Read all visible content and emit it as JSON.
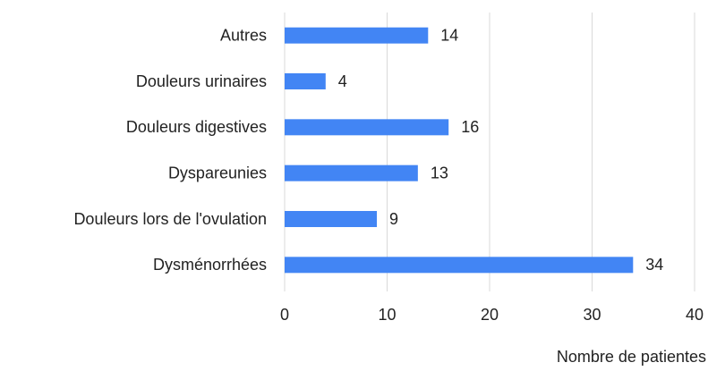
{
  "chart_data": {
    "type": "barh",
    "categories": [
      "Autres",
      "Douleurs urinaires",
      "Douleurs digestives",
      "Dyspareunies",
      "Douleurs lors de l'ovulation",
      "Dysménorrhées"
    ],
    "values": [
      14,
      4,
      16,
      13,
      9,
      34
    ],
    "color": "#4285f4",
    "xlabel": "Nombre de patientes",
    "xlim": [
      0,
      40
    ],
    "xticks": [
      0,
      10,
      20,
      30,
      40
    ],
    "grid": true
  }
}
